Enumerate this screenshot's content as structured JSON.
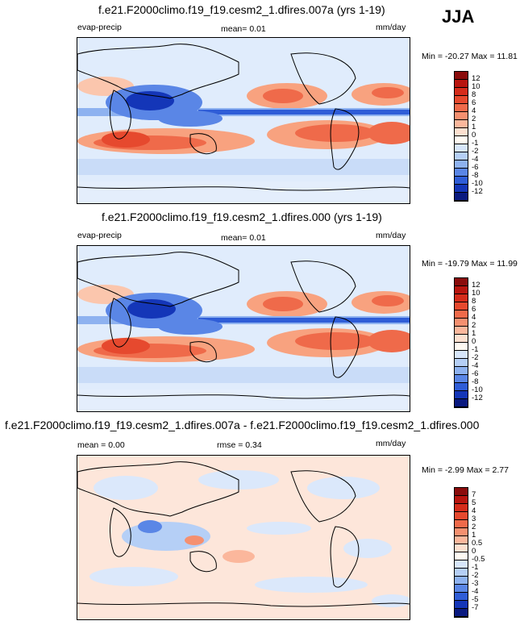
{
  "season": "JJA",
  "panels": [
    {
      "title": "f.e21.F2000climo.f19_f19.cesm2_1.dfires.007a (yrs 1-19)",
      "left_label": "evap-precip",
      "mid_label": "mean=   0.01",
      "units": "mm/day",
      "minmax": "Min = -20.27 Max =  11.81"
    },
    {
      "title": "f.e21.F2000climo.f19_f19.cesm2_1.dfires.000 (yrs 1-19)",
      "left_label": "evap-precip",
      "mid_label": "mean=   0.01",
      "units": "mm/day",
      "minmax": "Min = -19.79 Max =  11.99"
    },
    {
      "title": "f.e21.F2000climo.f19_f19.cesm2_1.dfires.007a - f.e21.F2000climo.f19_f19.cesm2_1.dfires.000",
      "left_label": "mean =   0.00",
      "mid_label": "rmse =   0.34",
      "units": "mm/day",
      "minmax": "Min = -2.99 Max =  2.77"
    }
  ],
  "colorbars": {
    "main": {
      "labels": [
        "12",
        "10",
        "8",
        "6",
        "4",
        "2",
        "1",
        "0",
        "-1",
        "-2",
        "-4",
        "-6",
        "-8",
        "-10",
        "-12"
      ],
      "colors": [
        "#8a0c0c",
        "#b8150f",
        "#d52c1b",
        "#e6492e",
        "#ef6a4a",
        "#f59070",
        "#fbb79c",
        "#fde0d0",
        "#fffaf3",
        "#d7e6fb",
        "#b5cff6",
        "#8eb2f0",
        "#5a86e6",
        "#2f5dd7",
        "#1436b8",
        "#0a1a80"
      ]
    },
    "diff": {
      "labels": [
        "7",
        "5",
        "4",
        "3",
        "2",
        "1",
        "0.5",
        "0",
        "-0.5",
        "-1",
        "-2",
        "-3",
        "-4",
        "-5",
        "-7"
      ],
      "colors": [
        "#8a0c0c",
        "#b8150f",
        "#d52c1b",
        "#e6492e",
        "#ef6a4a",
        "#f59070",
        "#fbb79c",
        "#fde0d0",
        "#fffaf3",
        "#d7e6fb",
        "#b5cff6",
        "#8eb2f0",
        "#5a86e6",
        "#2f5dd7",
        "#1436b8",
        "#0a1a80"
      ]
    }
  }
}
